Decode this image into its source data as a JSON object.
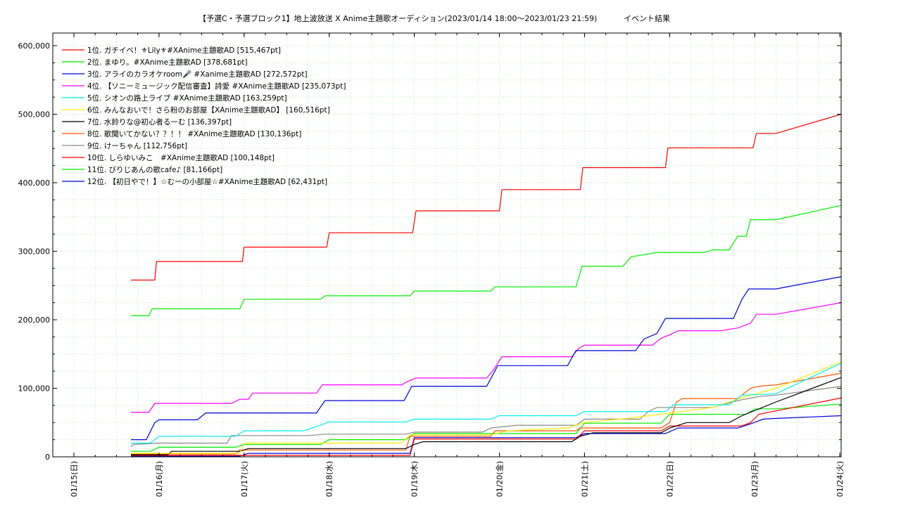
{
  "chart_data": {
    "type": "line",
    "title": "【予選C・予選ブロック1】地上波放送 X Anime主題歌オーディション(2023/01/14 18:00～2023/01/23 21:59)",
    "subtitle": "イベント結果",
    "xlabel": "",
    "ylabel": "",
    "xlim": [
      0,
      9
    ],
    "ylim": [
      0,
      600000
    ],
    "y_ticks": [
      0,
      100000,
      200000,
      300000,
      400000,
      500000,
      600000
    ],
    "y_tick_labels": [
      "0",
      "100,000",
      "200,000",
      "300,000",
      "400,000",
      "500,000",
      "600,000"
    ],
    "x_ticks": [
      0,
      1,
      2,
      3,
      4,
      5,
      6,
      7,
      8,
      9
    ],
    "x_tick_labels": [
      "01/15(日)",
      "01/16(月)",
      "01/17(火)",
      "01/18(水)",
      "01/19(木)",
      "01/20(金)",
      "01/21(土)",
      "01/22(日)",
      "01/23(月)",
      "01/24(火)"
    ],
    "grid": true,
    "legend_position": "top-left",
    "series": [
      {
        "name": "1位. ガチイベ！⚜Lily⚜#XAnime主題歌AD [515,467pt]",
        "color": "#ff0000",
        "points": [
          [
            0.67,
            258000
          ],
          [
            0.95,
            258000
          ],
          [
            0.97,
            285000
          ],
          [
            1.98,
            285000
          ],
          [
            2.0,
            306000
          ],
          [
            2.97,
            306000
          ],
          [
            3.0,
            327000
          ],
          [
            3.98,
            327000
          ],
          [
            4.02,
            359000
          ],
          [
            5.0,
            359000
          ],
          [
            5.03,
            390000
          ],
          [
            5.95,
            390000
          ],
          [
            5.98,
            422000
          ],
          [
            6.95,
            422000
          ],
          [
            6.98,
            451000
          ],
          [
            7.98,
            451000
          ],
          [
            8.02,
            472000
          ],
          [
            8.25,
            472000
          ],
          [
            9.02,
            500000
          ]
        ]
      },
      {
        "name": "2位. まゆり。#XAnime主題歌AD [378,681pt]",
        "color": "#00ee00",
        "points": [
          [
            0.67,
            206000
          ],
          [
            0.88,
            206000
          ],
          [
            0.92,
            216000
          ],
          [
            1.95,
            216000
          ],
          [
            2.0,
            230000
          ],
          [
            2.9,
            230000
          ],
          [
            2.95,
            235000
          ],
          [
            3.95,
            235000
          ],
          [
            4.0,
            242000
          ],
          [
            4.9,
            242000
          ],
          [
            4.95,
            248000
          ],
          [
            5.9,
            248000
          ],
          [
            5.97,
            278000
          ],
          [
            6.45,
            278000
          ],
          [
            6.55,
            292000
          ],
          [
            6.85,
            298000
          ],
          [
            7.4,
            298000
          ],
          [
            7.5,
            302000
          ],
          [
            7.7,
            302000
          ],
          [
            7.8,
            322000
          ],
          [
            7.9,
            322000
          ],
          [
            7.95,
            346000
          ],
          [
            8.25,
            346000
          ],
          [
            9.02,
            367000
          ]
        ]
      },
      {
        "name": "3位. アライのカラオケroom🎤 #Xanime主題歌AD [272,572pt]",
        "color": "#0000dd",
        "points": [
          [
            0.67,
            25000
          ],
          [
            0.85,
            25000
          ],
          [
            0.95,
            50000
          ],
          [
            1.0,
            54000
          ],
          [
            1.45,
            54000
          ],
          [
            1.55,
            64000
          ],
          [
            2.85,
            64000
          ],
          [
            2.95,
            82000
          ],
          [
            3.88,
            82000
          ],
          [
            3.97,
            103000
          ],
          [
            4.85,
            103000
          ],
          [
            4.98,
            133000
          ],
          [
            5.8,
            133000
          ],
          [
            5.9,
            155000
          ],
          [
            6.6,
            155000
          ],
          [
            6.7,
            172000
          ],
          [
            6.85,
            180000
          ],
          [
            6.95,
            202000
          ],
          [
            7.75,
            202000
          ],
          [
            7.85,
            230000
          ],
          [
            7.93,
            245000
          ],
          [
            8.25,
            245000
          ],
          [
            9.02,
            263000
          ]
        ]
      },
      {
        "name": "4位. 【ソニーミュージック配信審査】詩愛 #XAnime主題歌AD [235,073pt]",
        "color": "#ff00ff",
        "points": [
          [
            0.67,
            65000
          ],
          [
            0.88,
            65000
          ],
          [
            0.95,
            78000
          ],
          [
            1.85,
            78000
          ],
          [
            1.95,
            84000
          ],
          [
            2.05,
            84000
          ],
          [
            2.1,
            93000
          ],
          [
            2.85,
            93000
          ],
          [
            2.92,
            105000
          ],
          [
            3.85,
            105000
          ],
          [
            3.92,
            110000
          ],
          [
            4.02,
            115000
          ],
          [
            4.85,
            115000
          ],
          [
            4.92,
            125000
          ],
          [
            5.03,
            146000
          ],
          [
            5.85,
            146000
          ],
          [
            5.93,
            158000
          ],
          [
            6.0,
            163000
          ],
          [
            6.8,
            163000
          ],
          [
            6.9,
            173000
          ],
          [
            7.0,
            178000
          ],
          [
            7.1,
            184000
          ],
          [
            7.6,
            184000
          ],
          [
            7.8,
            188000
          ],
          [
            7.95,
            195000
          ],
          [
            8.02,
            208000
          ],
          [
            8.25,
            208000
          ],
          [
            9.02,
            225000
          ]
        ]
      },
      {
        "name": "5位. シオンの路上ライブ #XAnime主題歌AD [163,259pt]",
        "color": "#00eeee",
        "points": [
          [
            0.67,
            20000
          ],
          [
            0.9,
            20000
          ],
          [
            1.0,
            30000
          ],
          [
            1.9,
            30000
          ],
          [
            2.0,
            38000
          ],
          [
            2.7,
            38000
          ],
          [
            2.85,
            44000
          ],
          [
            3.0,
            51000
          ],
          [
            3.9,
            51000
          ],
          [
            4.0,
            55000
          ],
          [
            4.9,
            55000
          ],
          [
            5.0,
            60000
          ],
          [
            5.9,
            60000
          ],
          [
            6.0,
            66000
          ],
          [
            6.95,
            66000
          ],
          [
            7.05,
            76000
          ],
          [
            7.7,
            76000
          ],
          [
            7.85,
            90000
          ],
          [
            8.25,
            92000
          ],
          [
            9.02,
            137000
          ]
        ]
      },
      {
        "name": "6位. みんなおいで！さら粉のお部屋【XAnime主題歌AD】 [160,516pt]",
        "color": "#ffee00",
        "points": [
          [
            0.67,
            5000
          ],
          [
            1.95,
            5000
          ],
          [
            2.0,
            20000
          ],
          [
            3.85,
            20000
          ],
          [
            3.95,
            32000
          ],
          [
            4.9,
            32000
          ],
          [
            5.1,
            38000
          ],
          [
            5.8,
            42000
          ],
          [
            6.0,
            50000
          ],
          [
            6.5,
            56000
          ],
          [
            7.0,
            64000
          ],
          [
            7.5,
            72000
          ],
          [
            7.9,
            88000
          ],
          [
            8.25,
            100000
          ],
          [
            9.02,
            139000
          ]
        ]
      },
      {
        "name": "7位. 水鈴りな@初心者るーむ [136,397pt]",
        "color": "#000000",
        "points": [
          [
            0.67,
            3000
          ],
          [
            1.1,
            3000
          ],
          [
            1.15,
            8000
          ],
          [
            1.95,
            8000
          ],
          [
            2.05,
            12000
          ],
          [
            3.9,
            12000
          ],
          [
            4.0,
            18000
          ],
          [
            4.1,
            22000
          ],
          [
            5.85,
            22000
          ],
          [
            5.95,
            30000
          ],
          [
            6.1,
            35000
          ],
          [
            6.9,
            35000
          ],
          [
            7.0,
            42000
          ],
          [
            7.2,
            50000
          ],
          [
            7.7,
            50000
          ],
          [
            7.85,
            60000
          ],
          [
            8.05,
            70000
          ],
          [
            8.25,
            80000
          ],
          [
            9.02,
            116000
          ]
        ]
      },
      {
        "name": "8位. 歌聞いてかない？？！！ #XAnime主題歌AD [130,136pt]",
        "color": "#ff5500",
        "points": [
          [
            0.67,
            4000
          ],
          [
            1.9,
            4000
          ],
          [
            1.95,
            10000
          ],
          [
            3.9,
            10000
          ],
          [
            3.95,
            30000
          ],
          [
            4.9,
            30000
          ],
          [
            4.95,
            38000
          ],
          [
            5.9,
            38000
          ],
          [
            5.95,
            42000
          ],
          [
            6.9,
            42000
          ],
          [
            7.0,
            50000
          ],
          [
            7.08,
            80000
          ],
          [
            7.15,
            85000
          ],
          [
            7.8,
            85000
          ],
          [
            7.95,
            100000
          ],
          [
            8.05,
            103000
          ],
          [
            8.25,
            105000
          ],
          [
            9.02,
            122000
          ]
        ]
      },
      {
        "name": "9位. けーちゃん [112,756pt]",
        "color": "#888888",
        "points": [
          [
            0.67,
            15000
          ],
          [
            0.7,
            18000
          ],
          [
            1.0,
            20000
          ],
          [
            1.8,
            20000
          ],
          [
            1.85,
            31000
          ],
          [
            2.75,
            31000
          ],
          [
            2.95,
            33000
          ],
          [
            3.9,
            33000
          ],
          [
            4.0,
            36000
          ],
          [
            4.8,
            36000
          ],
          [
            4.9,
            42000
          ],
          [
            5.2,
            46000
          ],
          [
            5.9,
            46000
          ],
          [
            6.0,
            55000
          ],
          [
            6.65,
            55000
          ],
          [
            6.75,
            66000
          ],
          [
            6.85,
            72000
          ],
          [
            7.5,
            72000
          ],
          [
            7.8,
            82000
          ],
          [
            8.05,
            88000
          ],
          [
            8.25,
            90000
          ],
          [
            9.02,
            103000
          ]
        ]
      },
      {
        "name": "10位. しらゆいみこ　#XAnime主題歌AD [100,148pt]",
        "color": "#ff0000",
        "points": [
          [
            0.67,
            2000
          ],
          [
            3.95,
            2000
          ],
          [
            4.0,
            26000
          ],
          [
            5.9,
            26000
          ],
          [
            6.0,
            38000
          ],
          [
            6.9,
            38000
          ],
          [
            7.0,
            45000
          ],
          [
            7.85,
            45000
          ],
          [
            7.95,
            50000
          ],
          [
            8.05,
            62000
          ],
          [
            8.25,
            67000
          ],
          [
            9.02,
            86000
          ]
        ]
      },
      {
        "name": "11位. びりじあんの歌cafe♪ [81,166pt]",
        "color": "#00ee00",
        "points": [
          [
            0.67,
            8000
          ],
          [
            0.9,
            8000
          ],
          [
            1.0,
            14000
          ],
          [
            1.9,
            14000
          ],
          [
            2.0,
            18000
          ],
          [
            2.9,
            18000
          ],
          [
            3.0,
            25000
          ],
          [
            3.9,
            25000
          ],
          [
            4.0,
            34000
          ],
          [
            5.9,
            34000
          ],
          [
            6.0,
            49000
          ],
          [
            6.9,
            49000
          ],
          [
            7.0,
            62000
          ],
          [
            7.9,
            62000
          ],
          [
            8.0,
            70000
          ],
          [
            8.25,
            70000
          ],
          [
            9.02,
            77000
          ]
        ]
      },
      {
        "name": "12位. 【初日やで！】☆むーの小部屋☆#XAnime主題歌AD [62,431pt]",
        "color": "#0000dd",
        "points": [
          [
            0.67,
            1000
          ],
          [
            1.95,
            1000
          ],
          [
            2.05,
            5000
          ],
          [
            3.95,
            5000
          ],
          [
            4.0,
            28000
          ],
          [
            5.9,
            28000
          ],
          [
            6.0,
            34000
          ],
          [
            6.95,
            34000
          ],
          [
            7.1,
            42000
          ],
          [
            7.8,
            42000
          ],
          [
            7.95,
            48000
          ],
          [
            8.1,
            55000
          ],
          [
            8.25,
            56000
          ],
          [
            9.02,
            60000
          ]
        ]
      }
    ]
  }
}
